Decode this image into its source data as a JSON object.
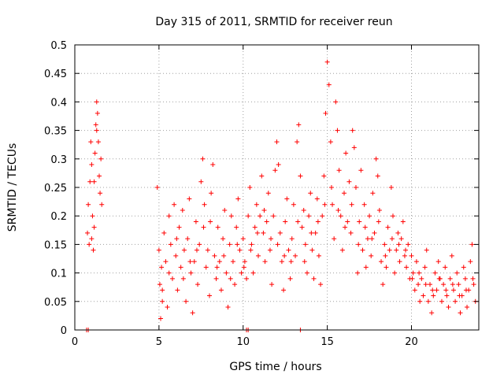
{
  "chart_data": {
    "type": "scatter",
    "title": "Day 315 of 2011, SRMTID for receiver reun",
    "xlabel": "GPS time / hours",
    "ylabel": "SRMTID / TECUs",
    "xlim": [
      0,
      24
    ],
    "ylim": [
      0,
      0.5
    ],
    "x_ticks": [
      0,
      5,
      10,
      15,
      20
    ],
    "y_ticks": [
      0,
      0.05,
      0.1,
      0.15,
      0.2,
      0.25,
      0.3,
      0.35,
      0.4,
      0.45,
      0.5
    ],
    "grid": true,
    "marker": "+",
    "color": "#ff0000",
    "series": [
      {
        "name": "SRMTID",
        "points": [
          [
            0.7,
            0.0
          ],
          [
            0.8,
            0.0
          ],
          [
            10.2,
            0.0
          ],
          [
            10.3,
            0.0
          ],
          [
            13.4,
            0.0
          ],
          [
            0.75,
            0.17
          ],
          [
            0.8,
            0.22
          ],
          [
            0.85,
            0.15
          ],
          [
            0.9,
            0.26
          ],
          [
            0.95,
            0.33
          ],
          [
            1.0,
            0.29
          ],
          [
            1.05,
            0.2
          ],
          [
            1.1,
            0.14
          ],
          [
            1.15,
            0.18
          ],
          [
            1.2,
            0.31
          ],
          [
            1.25,
            0.36
          ],
          [
            1.3,
            0.4
          ],
          [
            1.35,
            0.38
          ],
          [
            1.4,
            0.33
          ],
          [
            1.45,
            0.27
          ],
          [
            1.5,
            0.24
          ],
          [
            1.55,
            0.3
          ],
          [
            1.6,
            0.22
          ],
          [
            1.0,
            0.16
          ],
          [
            1.15,
            0.26
          ],
          [
            1.3,
            0.35
          ],
          [
            4.9,
            0.25
          ],
          [
            5.0,
            0.14
          ],
          [
            5.05,
            0.08
          ],
          [
            5.1,
            0.02
          ],
          [
            5.15,
            0.11
          ],
          [
            5.2,
            0.05
          ],
          [
            5.3,
            0.17
          ],
          [
            5.4,
            0.12
          ],
          [
            5.5,
            0.04
          ],
          [
            5.6,
            0.2
          ],
          [
            5.7,
            0.15
          ],
          [
            5.8,
            0.09
          ],
          [
            5.9,
            0.22
          ],
          [
            6.0,
            0.13
          ],
          [
            6.1,
            0.07
          ],
          [
            6.2,
            0.18
          ],
          [
            6.3,
            0.11
          ],
          [
            6.4,
            0.21
          ],
          [
            6.5,
            0.14
          ],
          [
            6.6,
            0.05
          ],
          [
            6.7,
            0.16
          ],
          [
            6.8,
            0.23
          ],
          [
            6.9,
            0.1
          ],
          [
            7.0,
            0.03
          ],
          [
            7.1,
            0.12
          ],
          [
            7.2,
            0.19
          ],
          [
            7.3,
            0.08
          ],
          [
            7.4,
            0.15
          ],
          [
            7.5,
            0.26
          ],
          [
            7.6,
            0.3
          ],
          [
            7.7,
            0.22
          ],
          [
            7.8,
            0.11
          ],
          [
            7.9,
            0.14
          ],
          [
            8.0,
            0.06
          ],
          [
            8.1,
            0.24
          ],
          [
            8.2,
            0.29
          ],
          [
            8.3,
            0.13
          ],
          [
            8.4,
            0.09
          ],
          [
            8.5,
            0.18
          ],
          [
            8.6,
            0.12
          ],
          [
            8.7,
            0.07
          ],
          [
            8.8,
            0.16
          ],
          [
            8.9,
            0.21
          ],
          [
            9.0,
            0.1
          ],
          [
            9.1,
            0.04
          ],
          [
            9.2,
            0.15
          ],
          [
            9.3,
            0.2
          ],
          [
            9.4,
            0.12
          ],
          [
            9.5,
            0.08
          ],
          [
            9.6,
            0.18
          ],
          [
            9.7,
            0.23
          ],
          [
            9.8,
            0.14
          ],
          [
            9.9,
            0.1
          ],
          [
            10.0,
            0.16
          ],
          [
            10.1,
            0.12
          ],
          [
            10.2,
            0.09
          ],
          [
            10.3,
            0.2
          ],
          [
            10.4,
            0.25
          ],
          [
            10.5,
            0.15
          ],
          [
            10.6,
            0.1
          ],
          [
            10.7,
            0.18
          ],
          [
            10.8,
            0.22
          ],
          [
            10.9,
            0.13
          ],
          [
            11.0,
            0.2
          ],
          [
            11.1,
            0.27
          ],
          [
            11.2,
            0.17
          ],
          [
            11.3,
            0.12
          ],
          [
            11.4,
            0.19
          ],
          [
            11.5,
            0.24
          ],
          [
            11.6,
            0.14
          ],
          [
            11.7,
            0.08
          ],
          [
            11.8,
            0.2
          ],
          [
            11.9,
            0.28
          ],
          [
            12.0,
            0.33
          ],
          [
            12.1,
            0.29
          ],
          [
            12.2,
            0.17
          ],
          [
            12.3,
            0.12
          ],
          [
            12.4,
            0.07
          ],
          [
            12.5,
            0.19
          ],
          [
            12.6,
            0.23
          ],
          [
            12.7,
            0.14
          ],
          [
            12.8,
            0.09
          ],
          [
            12.9,
            0.16
          ],
          [
            13.0,
            0.22
          ],
          [
            13.1,
            0.13
          ],
          [
            13.2,
            0.33
          ],
          [
            13.3,
            0.36
          ],
          [
            13.4,
            0.27
          ],
          [
            13.5,
            0.18
          ],
          [
            13.6,
            0.21
          ],
          [
            13.7,
            0.15
          ],
          [
            13.8,
            0.1
          ],
          [
            13.9,
            0.2
          ],
          [
            14.0,
            0.24
          ],
          [
            14.1,
            0.14
          ],
          [
            14.2,
            0.09
          ],
          [
            14.3,
            0.17
          ],
          [
            14.4,
            0.23
          ],
          [
            14.5,
            0.13
          ],
          [
            14.6,
            0.08
          ],
          [
            14.7,
            0.2
          ],
          [
            14.8,
            0.27
          ],
          [
            14.9,
            0.38
          ],
          [
            15.0,
            0.47
          ],
          [
            15.1,
            0.43
          ],
          [
            15.2,
            0.33
          ],
          [
            15.3,
            0.22
          ],
          [
            15.4,
            0.16
          ],
          [
            15.5,
            0.4
          ],
          [
            15.6,
            0.35
          ],
          [
            15.7,
            0.28
          ],
          [
            15.8,
            0.2
          ],
          [
            15.9,
            0.14
          ],
          [
            16.0,
            0.24
          ],
          [
            16.1,
            0.31
          ],
          [
            16.2,
            0.19
          ],
          [
            16.3,
            0.26
          ],
          [
            16.4,
            0.17
          ],
          [
            16.5,
            0.35
          ],
          [
            16.6,
            0.32
          ],
          [
            16.7,
            0.25
          ],
          [
            16.8,
            0.1
          ],
          [
            16.9,
            0.19
          ],
          [
            17.0,
            0.28
          ],
          [
            17.1,
            0.14
          ],
          [
            17.2,
            0.22
          ],
          [
            17.3,
            0.11
          ],
          [
            17.4,
            0.16
          ],
          [
            17.5,
            0.2
          ],
          [
            17.6,
            0.13
          ],
          [
            17.7,
            0.24
          ],
          [
            17.8,
            0.17
          ],
          [
            17.9,
            0.3
          ],
          [
            18.0,
            0.27
          ],
          [
            18.1,
            0.21
          ],
          [
            18.2,
            0.12
          ],
          [
            18.3,
            0.08
          ],
          [
            18.4,
            0.15
          ],
          [
            18.5,
            0.11
          ],
          [
            18.6,
            0.18
          ],
          [
            18.7,
            0.14
          ],
          [
            18.8,
            0.25
          ],
          [
            18.9,
            0.2
          ],
          [
            19.0,
            0.1
          ],
          [
            19.1,
            0.14
          ],
          [
            19.2,
            0.17
          ],
          [
            19.3,
            0.12
          ],
          [
            19.4,
            0.16
          ],
          [
            19.5,
            0.19
          ],
          [
            19.6,
            0.13
          ],
          [
            19.7,
            0.11
          ],
          [
            19.8,
            0.15
          ],
          [
            19.9,
            0.09
          ],
          [
            20.0,
            0.13
          ],
          [
            20.1,
            0.1
          ],
          [
            20.2,
            0.07
          ],
          [
            20.3,
            0.12
          ],
          [
            20.4,
            0.08
          ],
          [
            20.5,
            0.05
          ],
          [
            20.6,
            0.09
          ],
          [
            20.7,
            0.06
          ],
          [
            20.8,
            0.11
          ],
          [
            20.9,
            0.14
          ],
          [
            21.0,
            0.05
          ],
          [
            21.1,
            0.08
          ],
          [
            21.2,
            0.03
          ],
          [
            21.3,
            0.06
          ],
          [
            21.4,
            0.1
          ],
          [
            21.5,
            0.07
          ],
          [
            21.6,
            0.12
          ],
          [
            21.7,
            0.09
          ],
          [
            21.8,
            0.05
          ],
          [
            21.9,
            0.08
          ],
          [
            22.0,
            0.11
          ],
          [
            22.1,
            0.06
          ],
          [
            22.2,
            0.04
          ],
          [
            22.3,
            0.09
          ],
          [
            22.4,
            0.13
          ],
          [
            22.5,
            0.07
          ],
          [
            22.6,
            0.05
          ],
          [
            22.7,
            0.1
          ],
          [
            22.8,
            0.08
          ],
          [
            22.9,
            0.03
          ],
          [
            23.0,
            0.06
          ],
          [
            23.1,
            0.11
          ],
          [
            23.2,
            0.09
          ],
          [
            23.3,
            0.04
          ],
          [
            23.4,
            0.07
          ],
          [
            23.5,
            0.12
          ],
          [
            23.6,
            0.15
          ],
          [
            23.7,
            0.08
          ],
          [
            23.8,
            0.05
          ],
          [
            5.2,
            0.07
          ],
          [
            5.6,
            0.1
          ],
          [
            6.05,
            0.16
          ],
          [
            6.45,
            0.09
          ],
          [
            6.85,
            0.12
          ],
          [
            7.25,
            0.14
          ],
          [
            7.65,
            0.18
          ],
          [
            8.05,
            0.19
          ],
          [
            8.45,
            0.11
          ],
          [
            8.85,
            0.13
          ],
          [
            9.25,
            0.09
          ],
          [
            9.65,
            0.15
          ],
          [
            10.05,
            0.11
          ],
          [
            10.45,
            0.14
          ],
          [
            10.85,
            0.17
          ],
          [
            11.25,
            0.21
          ],
          [
            11.65,
            0.16
          ],
          [
            12.05,
            0.15
          ],
          [
            12.45,
            0.13
          ],
          [
            12.85,
            0.12
          ],
          [
            13.25,
            0.19
          ],
          [
            13.65,
            0.12
          ],
          [
            14.05,
            0.17
          ],
          [
            14.45,
            0.19
          ],
          [
            14.85,
            0.22
          ],
          [
            15.25,
            0.25
          ],
          [
            15.65,
            0.21
          ],
          [
            16.05,
            0.18
          ],
          [
            16.45,
            0.22
          ],
          [
            16.85,
            0.15
          ],
          [
            17.25,
            0.18
          ],
          [
            17.65,
            0.16
          ],
          [
            18.05,
            0.19
          ],
          [
            18.45,
            0.13
          ],
          [
            18.85,
            0.16
          ],
          [
            19.25,
            0.15
          ],
          [
            19.65,
            0.14
          ],
          [
            20.05,
            0.09
          ],
          [
            20.45,
            0.1
          ],
          [
            20.85,
            0.08
          ],
          [
            21.25,
            0.07
          ],
          [
            21.65,
            0.09
          ],
          [
            22.05,
            0.07
          ],
          [
            22.45,
            0.08
          ],
          [
            22.85,
            0.06
          ],
          [
            23.25,
            0.07
          ],
          [
            23.65,
            0.09
          ]
        ]
      }
    ]
  }
}
